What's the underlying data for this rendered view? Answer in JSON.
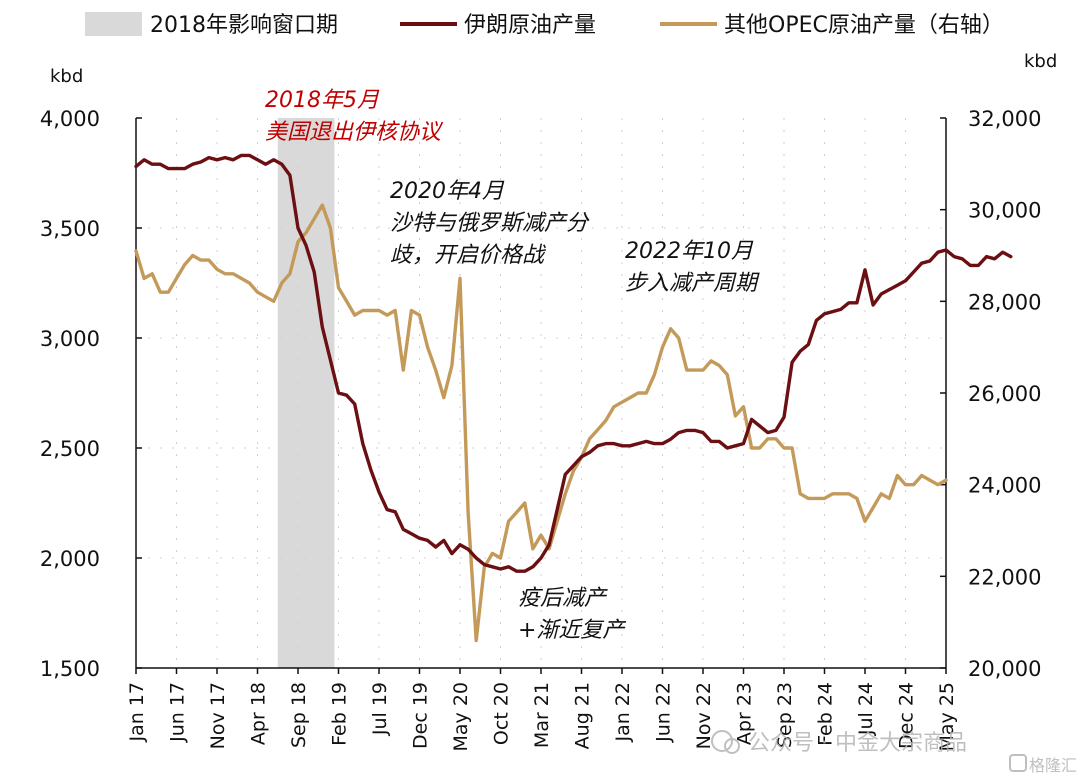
{
  "chart_data": {
    "type": "line",
    "legend": [
      {
        "label": "2018年影响窗口期",
        "kind": "shade",
        "color": "#d9d9d9"
      },
      {
        "label": "伊朗原油产量",
        "kind": "line",
        "color": "#6b0f13"
      },
      {
        "label": "其他OPEC原油产量（右轴）",
        "kind": "line",
        "color": "#c49a5a"
      }
    ],
    "left_axis": {
      "unit": "kbd",
      "ticks": [
        "4,000",
        "3,500",
        "3,000",
        "2,500",
        "2,000",
        "1,500"
      ],
      "range": [
        1500,
        4000
      ]
    },
    "right_axis": {
      "unit": "kbd",
      "ticks": [
        "32,000",
        "30,000",
        "28,000",
        "26,000",
        "24,000",
        "22,000",
        "20,000"
      ],
      "range": [
        20000,
        32000
      ]
    },
    "x_ticks": [
      "Jan 17",
      "Jun 17",
      "Nov 17",
      "Apr 18",
      "Sep 18",
      "Feb 19",
      "Jul 19",
      "Dec 19",
      "May 20",
      "Oct 20",
      "Mar 21",
      "Aug 21",
      "Jan 22",
      "Jun 22",
      "Nov 22",
      "Apr 23",
      "Sep 23",
      "Feb 24",
      "Jul 24",
      "Dec 24",
      "May 25"
    ],
    "x_range_months": [
      "2017-01",
      "2025-05"
    ],
    "shade_period": [
      "2018-07",
      "2019-01"
    ],
    "series": [
      {
        "name": "伊朗原油产量",
        "axis": "left",
        "color": "#6b0f13",
        "values": [
          3780,
          3810,
          3790,
          3790,
          3770,
          3770,
          3770,
          3790,
          3800,
          3820,
          3810,
          3820,
          3810,
          3830,
          3830,
          3810,
          3790,
          3810,
          3790,
          3740,
          3500,
          3420,
          3300,
          3050,
          2900,
          2750,
          2740,
          2700,
          2520,
          2400,
          2300,
          2220,
          2210,
          2130,
          2110,
          2090,
          2080,
          2050,
          2080,
          2020,
          2060,
          2040,
          2000,
          1970,
          1960,
          1950,
          1960,
          1940,
          1940,
          1960,
          2000,
          2060,
          2220,
          2380,
          2420,
          2460,
          2480,
          2510,
          2520,
          2520,
          2510,
          2510,
          2520,
          2530,
          2520,
          2520,
          2540,
          2570,
          2580,
          2580,
          2570,
          2530,
          2530,
          2500,
          2510,
          2520,
          2630,
          2600,
          2570,
          2580,
          2640,
          2890,
          2940,
          2970,
          3080,
          3110,
          3120,
          3130,
          3160,
          3160,
          3310,
          3150,
          3200,
          3220,
          3240,
          3260,
          3300,
          3340,
          3350,
          3390,
          3400,
          3370,
          3360,
          3330,
          3330,
          3370,
          3360,
          3390,
          3370
        ]
      },
      {
        "name": "其他OPEC原油产量（右轴）",
        "axis": "right",
        "color": "#c49a5a",
        "values": [
          29100,
          28500,
          28600,
          28200,
          28200,
          28500,
          28800,
          29000,
          28900,
          28900,
          28700,
          28600,
          28600,
          28500,
          28400,
          28200,
          28100,
          28000,
          28400,
          28600,
          29300,
          29500,
          29800,
          30100,
          29600,
          28300,
          28000,
          27700,
          27800,
          27800,
          27800,
          27700,
          27800,
          26500,
          27800,
          27700,
          27000,
          26500,
          25900,
          26600,
          28500,
          23400,
          20600,
          22200,
          22500,
          22400,
          23200,
          23400,
          23600,
          22600,
          22900,
          22600,
          23200,
          23800,
          24300,
          24600,
          25000,
          25200,
          25400,
          25700,
          25800,
          25900,
          26000,
          26000,
          26400,
          27000,
          27400,
          27200,
          26500,
          26500,
          26500,
          26700,
          26600,
          26400,
          25500,
          25700,
          24800,
          24800,
          25000,
          25000,
          24800,
          24800,
          23800,
          23700,
          23700,
          23700,
          23800,
          23800,
          23800,
          23700,
          23200,
          23500,
          23800,
          23700,
          24200,
          24000,
          24000,
          24200,
          24100,
          24000,
          24100
        ]
      }
    ],
    "annotations": [
      {
        "lines": [
          "2018年5月",
          "美国退出伊核协议"
        ],
        "color": "#c00000"
      },
      {
        "lines": [
          "2020年4月",
          "沙特与俄罗斯减产分",
          "歧，开启价格战"
        ],
        "color": "#111111"
      },
      {
        "lines": [
          "2022年10月",
          "步入减产周期"
        ],
        "color": "#111111"
      },
      {
        "lines": [
          "疫后减产",
          "+渐近复产"
        ],
        "color": "#111111"
      }
    ]
  },
  "watermark": {
    "text": "公众号 · 中金大宗商品",
    "logo": "格隆汇"
  }
}
